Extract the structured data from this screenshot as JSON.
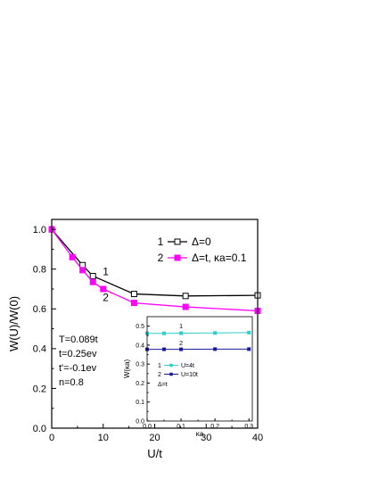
{
  "chart_data": [
    {
      "type": "line",
      "xlabel": "U/t",
      "ylabel": "W(U)/W(0)",
      "xlim": [
        0,
        40
      ],
      "ylim": [
        0,
        1.05
      ],
      "xticks": [
        0,
        10,
        20,
        30,
        40
      ],
      "xtick_labels": [
        "0",
        "10",
        "20",
        "30",
        "40"
      ],
      "yticks": [
        0.0,
        0.2,
        0.4,
        0.6,
        0.8,
        1.0
      ],
      "ytick_labels": [
        "0.0",
        "0.2",
        "0.4",
        "0.6",
        "0.8",
        "1.0"
      ],
      "grid": false,
      "legend_position": "top-right",
      "series": [
        {
          "name": "Δ=0",
          "legend_number": "1",
          "curve_label": "1",
          "color": "#000000",
          "marker": "open-square",
          "x": [
            0,
            6,
            8,
            16,
            26,
            40
          ],
          "y": [
            1.0,
            0.82,
            0.765,
            0.675,
            0.665,
            0.668
          ]
        },
        {
          "name": "Δ=t, κa=0.1",
          "legend_number": "2",
          "curve_label": "2",
          "color": "#ff00ff",
          "marker": "filled-square",
          "x": [
            0,
            4,
            6,
            8,
            10,
            16,
            26,
            40
          ],
          "y": [
            1.0,
            0.86,
            0.795,
            0.735,
            0.7,
            0.63,
            0.61,
            0.59
          ]
        }
      ],
      "annotations": [
        "T=0.089t",
        "t=0.25ev",
        "t'=-0.1ev",
        "n=0.8"
      ]
    },
    {
      "type": "line",
      "role": "inset",
      "xlabel": "κa",
      "ylabel": "W(κa)",
      "xlim": [
        0,
        0.31
      ],
      "ylim": [
        0,
        0.55
      ],
      "xticks": [
        0.0,
        0.1,
        0.2,
        0.3
      ],
      "xtick_labels": [
        "0.0",
        "0.1",
        "0.2",
        "0.3"
      ],
      "yticks": [
        0.0,
        0.1,
        0.2,
        0.3,
        0.4,
        0.5
      ],
      "ytick_labels": [
        "0.0",
        "0.1",
        "0.2",
        "0.3",
        "0.4",
        "0.5"
      ],
      "grid": false,
      "legend_position": "bottom-left",
      "series": [
        {
          "name": "U=4t",
          "legend_number": "1",
          "curve_label": "1",
          "color": "#33cccc",
          "marker": "filled-square",
          "x": [
            0.0,
            0.05,
            0.1,
            0.2,
            0.3
          ],
          "y": [
            0.462,
            0.462,
            0.463,
            0.464,
            0.466
          ]
        },
        {
          "name": "U=10t",
          "legend_number": "2",
          "curve_label": "2",
          "color": "#1a1a99",
          "marker": "filled-square",
          "x": [
            0.0,
            0.05,
            0.1,
            0.2,
            0.3
          ],
          "y": [
            0.378,
            0.378,
            0.378,
            0.379,
            0.379
          ]
        }
      ],
      "annotations": [
        "Δ=t"
      ]
    }
  ]
}
